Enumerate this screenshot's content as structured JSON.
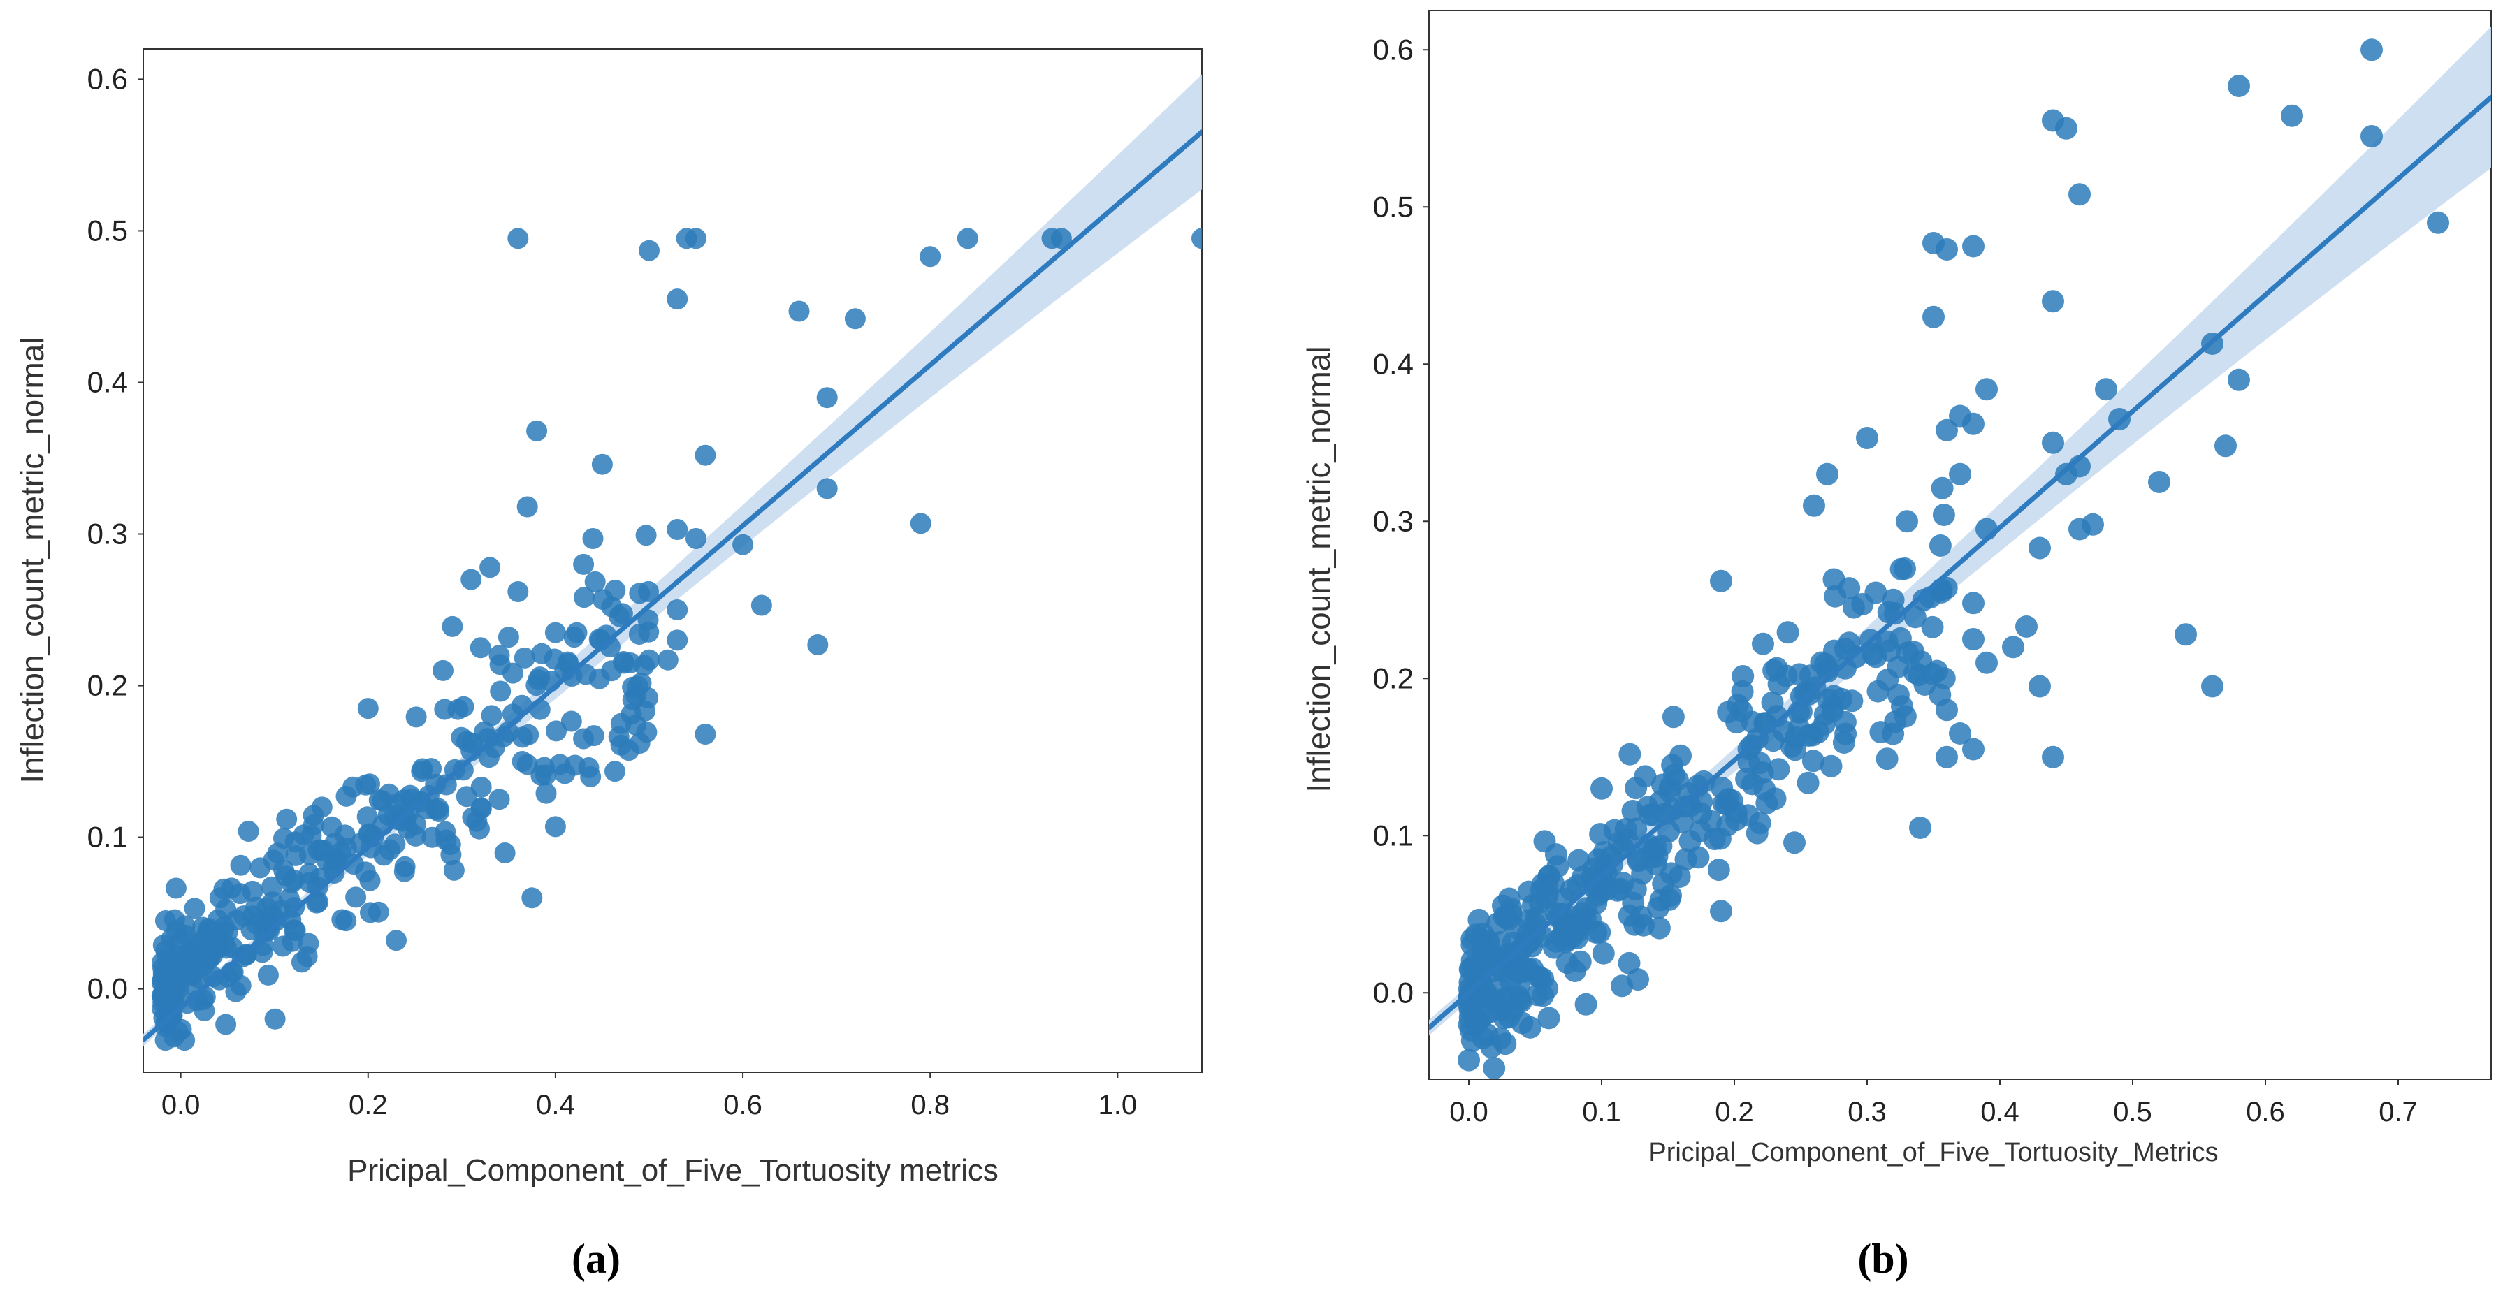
{
  "chart_data": [
    {
      "panel": "(a)",
      "type": "scatter",
      "title": "",
      "xlabel": "Pricipal_Component_of_Five_Tortuosity metrics",
      "ylabel": "Inflection_count_metric_normal",
      "xlim": [
        -0.04,
        1.09
      ],
      "ylim": [
        -0.055,
        0.62
      ],
      "xticks": [
        0.0,
        0.2,
        0.4,
        0.6,
        0.8,
        1.0
      ],
      "xtick_labels": [
        "0.0",
        "0.2",
        "0.4",
        "0.6",
        "0.8",
        "1.0"
      ],
      "yticks": [
        0.0,
        0.1,
        0.2,
        0.3,
        0.4,
        0.5,
        0.6
      ],
      "ytick_labels": [
        "0.0",
        "0.1",
        "0.2",
        "0.3",
        "0.4",
        "0.5",
        "0.6"
      ],
      "grid": false,
      "regression": {
        "slope": 0.53,
        "intercept": -0.0125,
        "x_range": [
          -0.04,
          1.09
        ],
        "ci_half_width": [
          0.004,
          0.038
        ]
      },
      "outliers": [
        [
          0.36,
          0.495
        ],
        [
          0.5,
          0.487
        ],
        [
          0.54,
          0.495
        ],
        [
          0.55,
          0.495
        ],
        [
          0.53,
          0.455
        ],
        [
          0.66,
          0.447
        ],
        [
          0.72,
          0.442
        ],
        [
          0.8,
          0.483
        ],
        [
          0.84,
          0.495
        ],
        [
          0.93,
          0.495
        ],
        [
          0.94,
          0.495
        ],
        [
          1.09,
          0.495
        ],
        [
          0.69,
          0.39
        ],
        [
          0.69,
          0.33
        ],
        [
          0.79,
          0.307
        ],
        [
          0.68,
          0.227
        ],
        [
          0.62,
          0.253
        ],
        [
          0.6,
          0.293
        ],
        [
          0.56,
          0.352
        ],
        [
          0.55,
          0.297
        ],
        [
          0.53,
          0.303
        ],
        [
          0.38,
          0.368
        ],
        [
          0.37,
          0.318
        ],
        [
          0.45,
          0.346
        ],
        [
          0.43,
          0.28
        ],
        [
          0.44,
          0.297
        ],
        [
          0.33,
          0.278
        ],
        [
          0.31,
          0.27
        ],
        [
          0.35,
          0.232
        ],
        [
          0.36,
          0.262
        ],
        [
          0.29,
          0.239
        ],
        [
          0.32,
          0.225
        ],
        [
          0.34,
          0.22
        ],
        [
          0.4,
          0.235
        ],
        [
          0.42,
          0.232
        ],
        [
          0.41,
          0.21
        ],
        [
          0.46,
          0.252
        ],
        [
          0.53,
          0.25
        ],
        [
          0.53,
          0.23
        ],
        [
          0.48,
          0.215
        ],
        [
          0.5,
          0.217
        ],
        [
          0.52,
          0.217
        ],
        [
          0.47,
          0.175
        ],
        [
          0.49,
          0.162
        ],
        [
          0.56,
          0.168
        ],
        [
          0.43,
          0.165
        ],
        [
          0.41,
          0.142
        ],
        [
          0.39,
          0.129
        ],
        [
          0.4,
          0.107
        ],
        [
          0.2,
          0.185
        ],
        [
          0.23,
          0.032
        ],
        [
          0.37,
          0.148
        ],
        [
          0.31,
          0.157
        ],
        [
          0.34,
          0.125
        ],
        [
          0.28,
          0.21
        ]
      ],
      "cluster": {
        "n": 340,
        "x_range": [
          -0.02,
          0.5
        ],
        "slope": 0.44,
        "intercept": 0.01,
        "spread": 0.018
      }
    },
    {
      "panel": "(b)",
      "type": "scatter",
      "title": "",
      "xlabel": "Pricipal_Component_of_Five_Tortuosity_Metrics",
      "ylabel": "Inflection_count_metric_normal",
      "xlim": [
        -0.03,
        0.77
      ],
      "ylim": [
        -0.055,
        0.625
      ],
      "xticks": [
        0.0,
        0.1,
        0.2,
        0.3,
        0.4,
        0.5,
        0.6,
        0.7
      ],
      "xtick_labels": [
        "0.0",
        "0.1",
        "0.2",
        "0.3",
        "0.4",
        "0.5",
        "0.6",
        "0.7"
      ],
      "yticks": [
        0.0,
        0.1,
        0.2,
        0.3,
        0.4,
        0.5,
        0.6
      ],
      "ytick_labels": [
        "0.0",
        "0.1",
        "0.2",
        "0.3",
        "0.4",
        "0.5",
        "0.6"
      ],
      "grid": false,
      "regression": {
        "slope": 0.74,
        "intercept": 0.0,
        "x_range": [
          -0.03,
          0.77
        ],
        "ci_half_width": [
          0.005,
          0.045
        ]
      },
      "outliers": [
        [
          0.68,
          0.6
        ],
        [
          0.58,
          0.577
        ],
        [
          0.62,
          0.558
        ],
        [
          0.68,
          0.545
        ],
        [
          0.73,
          0.49
        ],
        [
          0.44,
          0.555
        ],
        [
          0.45,
          0.55
        ],
        [
          0.46,
          0.508
        ],
        [
          0.35,
          0.477
        ],
        [
          0.36,
          0.473
        ],
        [
          0.38,
          0.475
        ],
        [
          0.44,
          0.44
        ],
        [
          0.35,
          0.43
        ],
        [
          0.39,
          0.384
        ],
        [
          0.37,
          0.367
        ],
        [
          0.38,
          0.362
        ],
        [
          0.36,
          0.358
        ],
        [
          0.37,
          0.33
        ],
        [
          0.3,
          0.353
        ],
        [
          0.27,
          0.33
        ],
        [
          0.26,
          0.31
        ],
        [
          0.33,
          0.3
        ],
        [
          0.46,
          0.335
        ],
        [
          0.48,
          0.384
        ],
        [
          0.49,
          0.365
        ],
        [
          0.46,
          0.295
        ],
        [
          0.47,
          0.298
        ],
        [
          0.52,
          0.325
        ],
        [
          0.56,
          0.413
        ],
        [
          0.58,
          0.39
        ],
        [
          0.57,
          0.348
        ],
        [
          0.54,
          0.228
        ],
        [
          0.56,
          0.195
        ],
        [
          0.43,
          0.283
        ],
        [
          0.44,
          0.35
        ],
        [
          0.45,
          0.33
        ],
        [
          0.42,
          0.233
        ],
        [
          0.43,
          0.195
        ],
        [
          0.44,
          0.15
        ],
        [
          0.38,
          0.248
        ],
        [
          0.38,
          0.225
        ],
        [
          0.39,
          0.21
        ],
        [
          0.34,
          0.105
        ],
        [
          0.36,
          0.15
        ],
        [
          0.36,
          0.18
        ],
        [
          0.37,
          0.165
        ],
        [
          0.38,
          0.155
        ],
        [
          0.19,
          0.262
        ],
        [
          0.1,
          0.13
        ],
        [
          0.08,
          0.04
        ],
        [
          0.19,
          0.052
        ],
        [
          0.41,
          0.22
        ],
        [
          0.39,
          0.295
        ]
      ],
      "cluster": {
        "n": 380,
        "x_range": [
          0.0,
          0.36
        ],
        "slope": 0.7,
        "intercept": 0.0,
        "spread": 0.022
      }
    }
  ],
  "panel_labels": [
    "(a)",
    "(b)"
  ],
  "colors": {
    "point": "#2b7bba",
    "line": "#2f7bbf",
    "band": "#c9dcef",
    "frame": "#333333"
  }
}
